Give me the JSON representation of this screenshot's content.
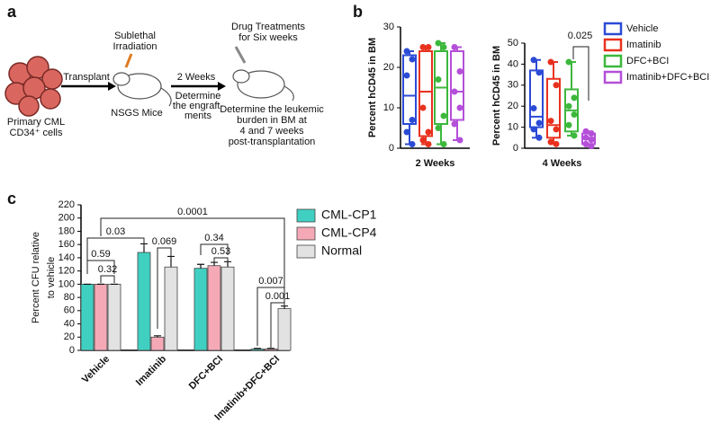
{
  "panels": [
    "a",
    "b",
    "c"
  ],
  "diagram": {
    "primary_cells": [
      "Primary CML",
      "CD34⁺ cells"
    ],
    "transplant": "Transplant",
    "irradiation": [
      "Sublethal",
      "Irradiation"
    ],
    "mice": "NSGS Mice",
    "two_weeks": "2 Weeks",
    "engraftment": [
      "Determine",
      "the engraft-",
      "ments"
    ],
    "treatment": [
      "Drug Treatments",
      "for Six weeks"
    ],
    "burden": [
      "Determine the leukemic",
      "burden in BM at",
      "4 and 7  weeks",
      "post-transplantation"
    ]
  },
  "chart_data": [
    {
      "type": "box",
      "ylabel": "Percent hCD45 in BM",
      "xlabel": "2 Weeks",
      "ylim": [
        0,
        30
      ],
      "yticks": [
        0,
        10,
        20,
        30
      ],
      "series": [
        {
          "color": "#2b4bd6",
          "min": 1,
          "q1": 6,
          "median": 13,
          "q3": 23,
          "max": 24,
          "points": [
            24,
            22,
            18,
            7,
            4,
            1
          ]
        },
        {
          "color": "#e8321e",
          "min": 1,
          "q1": 3,
          "median": 14,
          "q3": 24,
          "max": 25,
          "points": [
            25,
            25,
            10,
            4,
            2,
            1
          ]
        },
        {
          "color": "#3cb83c",
          "min": 1,
          "q1": 6,
          "median": 15,
          "q3": 24,
          "max": 26,
          "points": [
            26,
            25,
            17,
            8,
            5,
            1
          ]
        },
        {
          "color": "#b44fd9",
          "min": 2,
          "q1": 7,
          "median": 14,
          "q3": 24,
          "max": 25,
          "points": [
            25,
            19,
            14,
            10,
            6,
            2
          ]
        }
      ]
    },
    {
      "type": "box",
      "ylabel": "Percent hCD45 in BM",
      "xlabel": "4 Weeks",
      "ylim": [
        0,
        50
      ],
      "yticks": [
        0,
        10,
        20,
        30,
        40,
        50
      ],
      "legend": "right",
      "annotations": [
        {
          "text": "0.025"
        }
      ],
      "series": [
        {
          "name": "Vehicle",
          "color": "#2b4bd6",
          "min": 5,
          "q1": 10,
          "median": 15,
          "q3": 37,
          "max": 42,
          "points": [
            42,
            36,
            19,
            12,
            9,
            5
          ]
        },
        {
          "name": "Imatinib",
          "color": "#e8321e",
          "min": 2,
          "q1": 5,
          "median": 11,
          "q3": 33,
          "max": 41,
          "points": [
            41,
            30,
            13,
            9,
            3,
            2
          ]
        },
        {
          "name": "DFC+BCI",
          "color": "#3cb83c",
          "min": 6,
          "q1": 8,
          "median": 18,
          "q3": 28,
          "max": 41,
          "points": [
            41,
            24,
            20,
            16,
            11,
            6
          ]
        },
        {
          "name": "Imatinib+DFC+BCI",
          "color": "#b44fd9",
          "min": 1,
          "q1": 2,
          "median": 5,
          "q3": 7,
          "max": 8,
          "points": [
            8,
            7,
            5,
            4,
            2,
            1
          ]
        }
      ]
    },
    {
      "type": "bar",
      "ylabel": [
        "Percent CFU relative",
        "to vehicle"
      ],
      "ylim": [
        0,
        220
      ],
      "yticks": [
        0,
        20,
        40,
        60,
        80,
        100,
        120,
        140,
        160,
        180,
        200,
        220
      ],
      "legend": "right",
      "categories": [
        "Vehicle",
        "Imatinib",
        "DFC+BCI",
        "Imatinib+DFC+BCI"
      ],
      "series": [
        {
          "name": "CML-CP1",
          "color": "#40d0c2",
          "values": [
            100,
            148,
            124,
            2
          ],
          "errors": [
            0,
            13,
            6,
            1
          ]
        },
        {
          "name": "CML-CP4",
          "color": "#f5a9b6",
          "values": [
            100,
            20,
            128,
            2
          ],
          "errors": [
            0,
            2,
            5,
            1
          ]
        },
        {
          "name": "Normal",
          "color": "#e2e2e2",
          "values": [
            100,
            126,
            126,
            63
          ],
          "errors": [
            0,
            16,
            8,
            4
          ]
        }
      ],
      "annotations": [
        {
          "text": "0.03"
        },
        {
          "text": "0.0001"
        },
        {
          "text": "0.59"
        },
        {
          "text": "0.32"
        },
        {
          "text": "0.069"
        },
        {
          "text": "0.34"
        },
        {
          "text": "0.53"
        },
        {
          "text": "0.007"
        },
        {
          "text": "0.001"
        }
      ]
    }
  ]
}
